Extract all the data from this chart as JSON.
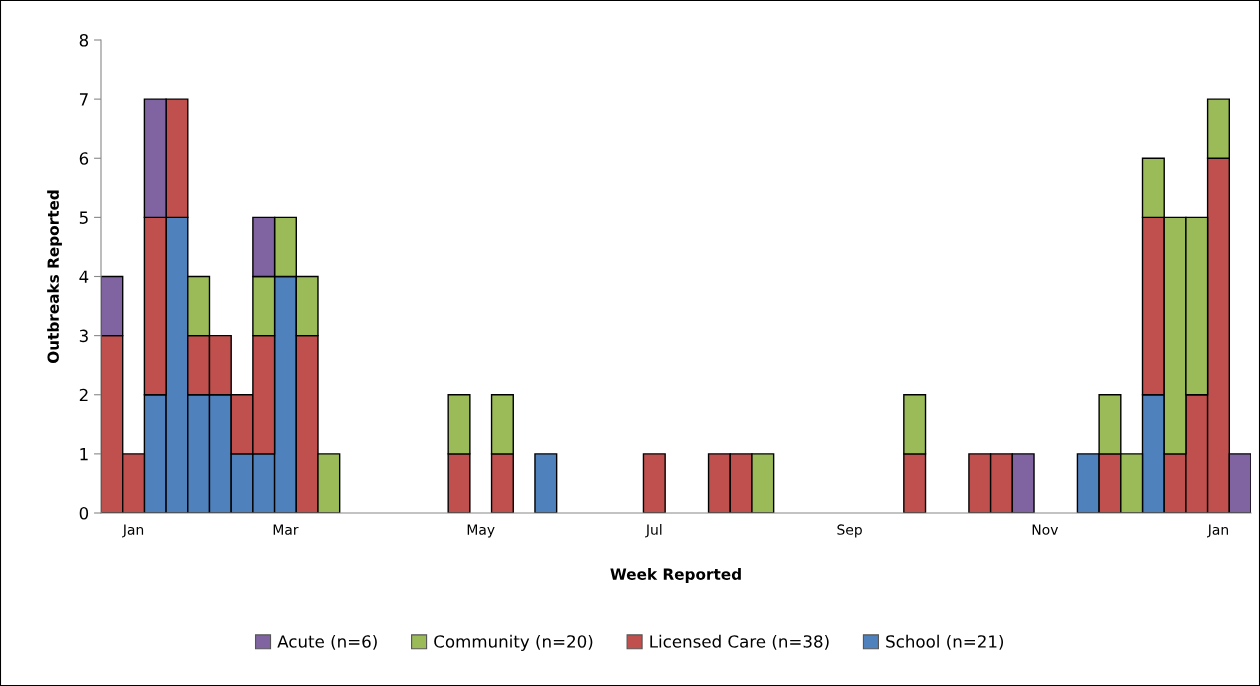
{
  "chart_data": {
    "type": "bar",
    "stacked": true,
    "xlabel": "Week Reported",
    "ylabel": "Outbreaks Reported",
    "categories": [
      null,
      "Jan",
      null,
      null,
      null,
      null,
      null,
      null,
      "Mar",
      null,
      null,
      null,
      null,
      null,
      null,
      null,
      null,
      "May",
      null,
      null,
      null,
      null,
      null,
      null,
      null,
      "Jul",
      null,
      null,
      null,
      null,
      null,
      null,
      null,
      null,
      "Sep",
      null,
      null,
      null,
      null,
      null,
      null,
      null,
      null,
      "Nov",
      null,
      null,
      null,
      null,
      null,
      null,
      null,
      "Jan",
      null
    ],
    "series": [
      {
        "name": "School (n=21)",
        "color": "#4f81bd",
        "values": [
          0,
          0,
          2,
          5,
          2,
          2,
          1,
          1,
          4,
          0,
          0,
          0,
          0,
          0,
          0,
          0,
          0,
          0,
          0,
          0,
          1,
          0,
          0,
          0,
          0,
          0,
          0,
          0,
          0,
          0,
          0,
          0,
          0,
          0,
          0,
          0,
          0,
          0,
          0,
          0,
          0,
          0,
          0,
          0,
          0,
          1,
          0,
          0,
          2,
          0,
          0,
          0,
          0
        ]
      },
      {
        "name": "Licensed Care (n=38)",
        "color": "#c0504d",
        "values": [
          3,
          1,
          3,
          2,
          1,
          1,
          1,
          2,
          0,
          3,
          0,
          0,
          0,
          0,
          0,
          0,
          1,
          0,
          1,
          0,
          0,
          0,
          0,
          0,
          0,
          1,
          0,
          0,
          1,
          1,
          0,
          0,
          0,
          0,
          0,
          0,
          0,
          1,
          0,
          0,
          1,
          1,
          0,
          0,
          0,
          0,
          1,
          0,
          3,
          1,
          2,
          6,
          0
        ]
      },
      {
        "name": "Community (n=20)",
        "color": "#9bbb59",
        "values": [
          0,
          0,
          0,
          0,
          1,
          0,
          0,
          1,
          1,
          1,
          1,
          0,
          0,
          0,
          0,
          0,
          1,
          0,
          1,
          0,
          0,
          0,
          0,
          0,
          0,
          0,
          0,
          0,
          0,
          0,
          1,
          0,
          0,
          0,
          0,
          0,
          0,
          1,
          0,
          0,
          0,
          0,
          0,
          0,
          0,
          0,
          1,
          1,
          1,
          4,
          3,
          1,
          0
        ]
      },
      {
        "name": "Acute (n=6)",
        "color": "#8064a2",
        "values": [
          1,
          0,
          2,
          0,
          0,
          0,
          0,
          1,
          0,
          0,
          0,
          0,
          0,
          0,
          0,
          0,
          0,
          0,
          0,
          0,
          0,
          0,
          0,
          0,
          0,
          0,
          0,
          0,
          0,
          0,
          0,
          0,
          0,
          0,
          0,
          0,
          0,
          0,
          0,
          0,
          0,
          0,
          1,
          0,
          0,
          0,
          0,
          0,
          0,
          0,
          0,
          0,
          1
        ]
      }
    ],
    "ylim": [
      0,
      8
    ],
    "yticks": [
      0,
      1,
      2,
      3,
      4,
      5,
      6,
      7,
      8
    ],
    "grid": false,
    "legend": "bottom"
  }
}
